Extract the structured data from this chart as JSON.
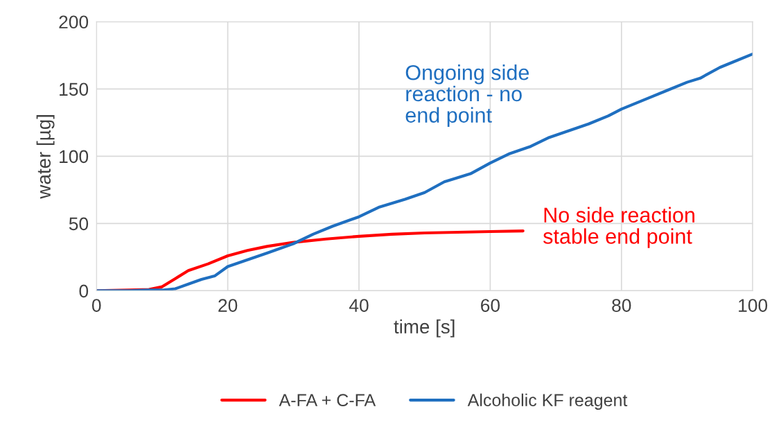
{
  "chart_data": {
    "type": "line",
    "xlabel": "time [s]",
    "ylabel": "water [µg]",
    "xlim": [
      0,
      100
    ],
    "xticks": [
      0,
      20,
      40,
      60,
      80,
      100
    ],
    "ylim": [
      0,
      200
    ],
    "yticks": [
      0,
      50,
      100,
      150,
      200
    ],
    "grid": true,
    "legend": "bottom",
    "marker": "none",
    "line_style": "solid",
    "series": [
      {
        "name": "A-FA + C-FA",
        "color": "#ff0000",
        "x": [
          0,
          5,
          8,
          10,
          12,
          14,
          17,
          20,
          23,
          26,
          30,
          35,
          40,
          45,
          50,
          55,
          60,
          65
        ],
        "values": [
          0,
          0.5,
          1,
          3,
          9,
          15,
          20,
          26,
          30,
          33,
          36,
          38.5,
          40.5,
          42,
          43,
          43.5,
          44,
          44.5
        ]
      },
      {
        "name": "Alcoholic KF reagent",
        "color": "#1f6fc0",
        "x": [
          0,
          5,
          8,
          10,
          12,
          14,
          16,
          18,
          20,
          23,
          26,
          30,
          33,
          36,
          40,
          43,
          47,
          50,
          53,
          57,
          60,
          63,
          66,
          69,
          72,
          75,
          78,
          80,
          84,
          87,
          90,
          92,
          95,
          97,
          100
        ],
        "values": [
          0,
          0,
          0.5,
          0.5,
          1.5,
          5,
          8.5,
          11,
          18,
          23,
          28,
          35,
          42,
          48,
          55,
          62,
          68,
          73,
          81,
          87,
          95,
          102,
          107,
          114,
          119,
          124,
          130,
          135,
          143,
          149,
          155,
          158,
          166,
          170,
          176
        ]
      }
    ],
    "annotations": [
      "No side reaction\nstable end point",
      "Ongoing side\nreaction - no\nend point"
    ]
  }
}
